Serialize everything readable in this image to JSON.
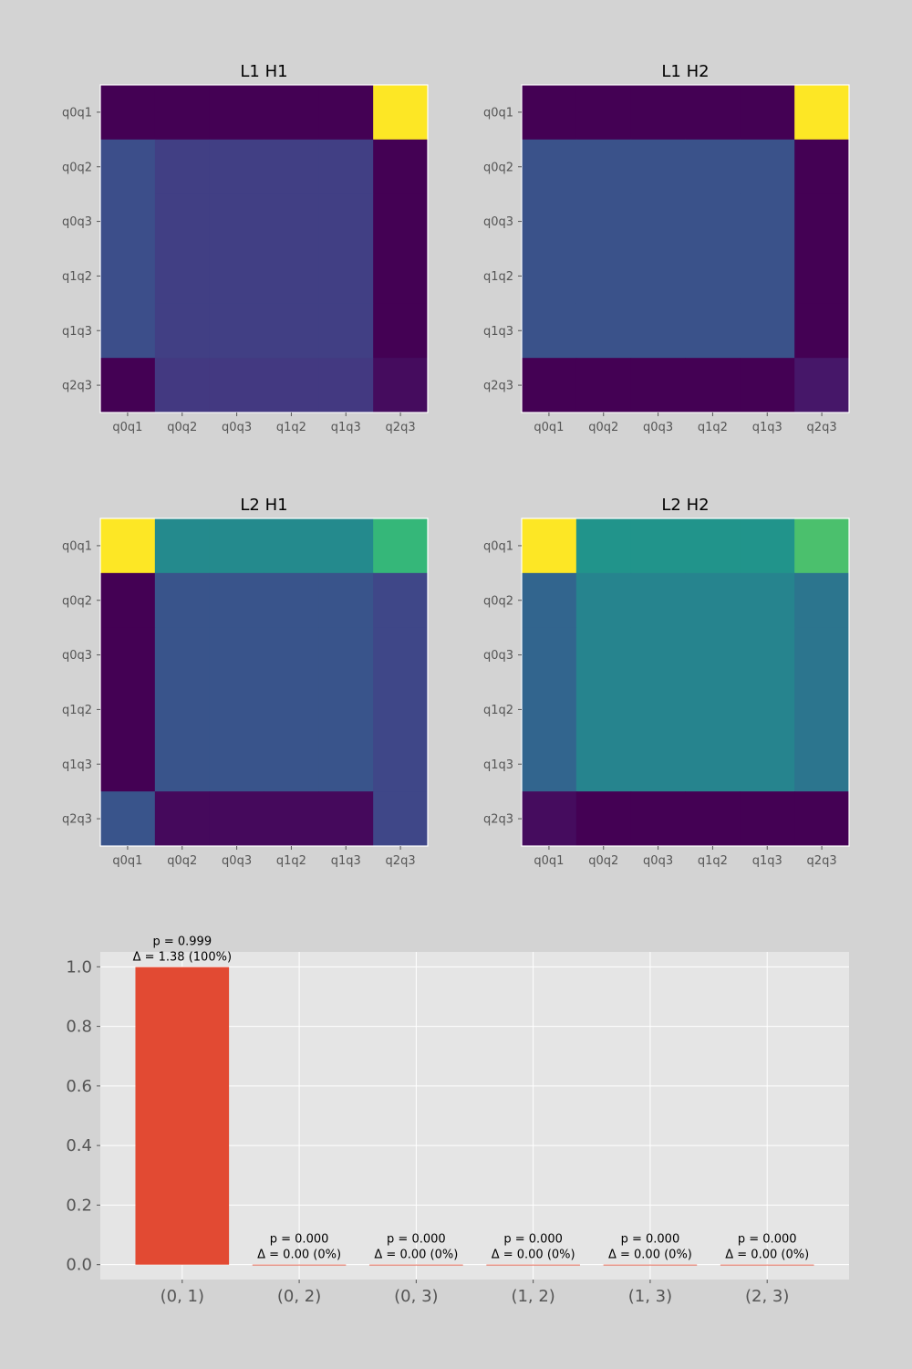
{
  "chart_data": [
    {
      "type": "heatmap",
      "title": "L1 H1",
      "x_labels": [
        "q0q1",
        "q0q2",
        "q0q3",
        "q1q2",
        "q1q3",
        "q2q3"
      ],
      "y_labels": [
        "q0q1",
        "q0q2",
        "q0q3",
        "q1q2",
        "q1q3",
        "q2q3"
      ],
      "colormap": "viridis",
      "values": [
        [
          0.0,
          0.0,
          0.0,
          0.0,
          0.0,
          1.0
        ],
        [
          0.24,
          0.19,
          0.19,
          0.19,
          0.19,
          0.0
        ],
        [
          0.24,
          0.19,
          0.19,
          0.19,
          0.19,
          0.0
        ],
        [
          0.24,
          0.19,
          0.19,
          0.19,
          0.19,
          0.0
        ],
        [
          0.24,
          0.19,
          0.19,
          0.19,
          0.19,
          0.0
        ],
        [
          0.0,
          0.17,
          0.17,
          0.17,
          0.17,
          0.03
        ]
      ]
    },
    {
      "type": "heatmap",
      "title": "L1 H2",
      "x_labels": [
        "q0q1",
        "q0q2",
        "q0q3",
        "q1q2",
        "q1q3",
        "q2q3"
      ],
      "y_labels": [
        "q0q1",
        "q0q2",
        "q0q3",
        "q1q2",
        "q1q3",
        "q2q3"
      ],
      "colormap": "viridis",
      "values": [
        [
          0.0,
          0.0,
          0.0,
          0.0,
          0.0,
          0.94
        ],
        [
          0.24,
          0.24,
          0.24,
          0.24,
          0.24,
          0.0
        ],
        [
          0.24,
          0.24,
          0.24,
          0.24,
          0.24,
          0.0
        ],
        [
          0.24,
          0.24,
          0.24,
          0.24,
          0.24,
          0.0
        ],
        [
          0.24,
          0.24,
          0.24,
          0.24,
          0.24,
          0.0
        ],
        [
          0.0,
          0.0,
          0.0,
          0.0,
          0.0,
          0.06
        ]
      ]
    },
    {
      "type": "heatmap",
      "title": "L2 H1",
      "x_labels": [
        "q0q1",
        "q0q2",
        "q0q3",
        "q1q2",
        "q1q3",
        "q2q3"
      ],
      "y_labels": [
        "q0q1",
        "q0q2",
        "q0q3",
        "q1q2",
        "q1q3",
        "q2q3"
      ],
      "colormap": "viridis",
      "values": [
        [
          0.48,
          0.26,
          0.26,
          0.26,
          0.26,
          0.34
        ],
        [
          0.06,
          0.17,
          0.17,
          0.17,
          0.17,
          0.15
        ],
        [
          0.06,
          0.17,
          0.17,
          0.17,
          0.17,
          0.15
        ],
        [
          0.06,
          0.17,
          0.17,
          0.17,
          0.17,
          0.15
        ],
        [
          0.06,
          0.17,
          0.17,
          0.17,
          0.17,
          0.15
        ],
        [
          0.17,
          0.07,
          0.07,
          0.07,
          0.07,
          0.15
        ]
      ]
    },
    {
      "type": "heatmap",
      "title": "L2 H2",
      "x_labels": [
        "q0q1",
        "q0q2",
        "q0q3",
        "q1q2",
        "q1q3",
        "q2q3"
      ],
      "y_labels": [
        "q0q1",
        "q0q2",
        "q0q3",
        "q1q2",
        "q1q3",
        "q2q3"
      ],
      "colormap": "viridis",
      "values": [
        [
          0.34,
          0.19,
          0.19,
          0.19,
          0.19,
          0.25
        ],
        [
          0.13,
          0.17,
          0.17,
          0.17,
          0.17,
          0.15
        ],
        [
          0.13,
          0.17,
          0.17,
          0.17,
          0.17,
          0.15
        ],
        [
          0.13,
          0.17,
          0.17,
          0.17,
          0.17,
          0.15
        ],
        [
          0.13,
          0.17,
          0.17,
          0.17,
          0.17,
          0.15
        ],
        [
          0.04,
          0.03,
          0.03,
          0.03,
          0.03,
          0.03
        ]
      ]
    },
    {
      "type": "bar",
      "categories": [
        "(0, 1)",
        "(0, 2)",
        "(0, 3)",
        "(1, 2)",
        "(1, 3)",
        "(2, 3)"
      ],
      "values": [
        0.999,
        0.0,
        0.0,
        0.0,
        0.0,
        0.0
      ],
      "annotations": [
        [
          "p = 0.999",
          "Δ = 1.38 (100%)"
        ],
        [
          "p = 0.000",
          "Δ = 0.00 (0%)"
        ],
        [
          "p = 0.000",
          "Δ = 0.00 (0%)"
        ],
        [
          "p = 0.000",
          "Δ = 0.00 (0%)"
        ],
        [
          "p = 0.000",
          "Δ = 0.00 (0%)"
        ],
        [
          "p = 0.000",
          "Δ = 0.00 (0%)"
        ]
      ],
      "yticks": [
        "0.0",
        "0.2",
        "0.4",
        "0.6",
        "0.8",
        "1.0"
      ],
      "ylim": [
        -0.05,
        1.05
      ],
      "grid": true,
      "bar_color": "#e24a33"
    }
  ]
}
